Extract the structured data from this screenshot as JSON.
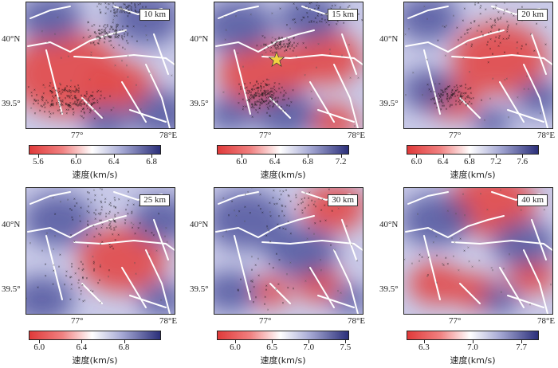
{
  "colors": {
    "low": "#e03a3a",
    "mid": "#ffffff",
    "high": "#2b2f7a",
    "fault": "#ffffff",
    "quake": "#111111",
    "star": "#f2d341"
  },
  "axes": {
    "lat_upper": "40°N",
    "lat_lower": "39.5°",
    "lon_left": "77°",
    "lon_right": "78°E"
  },
  "colorbar_label": "速度(km/s)",
  "panels": [
    {
      "depth": "10 km",
      "ticks": [
        "5.6",
        "6.0",
        "6.4",
        "6.8"
      ],
      "vmin": 5.5,
      "vmax": 6.9
    },
    {
      "depth": "15 km",
      "ticks": [
        "6.0",
        "6.4",
        "6.8",
        "7.2"
      ],
      "vmin": 5.7,
      "vmax": 7.3,
      "star": true
    },
    {
      "depth": "20 km",
      "ticks": [
        "6.0",
        "6.4",
        "6.8",
        "7.2",
        "7.6"
      ],
      "vmin": 5.85,
      "vmax": 7.85
    },
    {
      "depth": "25 km",
      "ticks": [
        "6.0",
        "6.4",
        "6.8"
      ],
      "vmin": 5.9,
      "vmax": 7.15
    },
    {
      "depth": "30 km",
      "ticks": [
        "6.0",
        "6.5",
        "7.0",
        "7.5"
      ],
      "vmin": 5.75,
      "vmax": 7.55
    },
    {
      "depth": "40 km",
      "ticks": [
        "6.3",
        "7.0",
        "7.7"
      ],
      "vmin": 6.05,
      "vmax": 7.95
    }
  ]
}
